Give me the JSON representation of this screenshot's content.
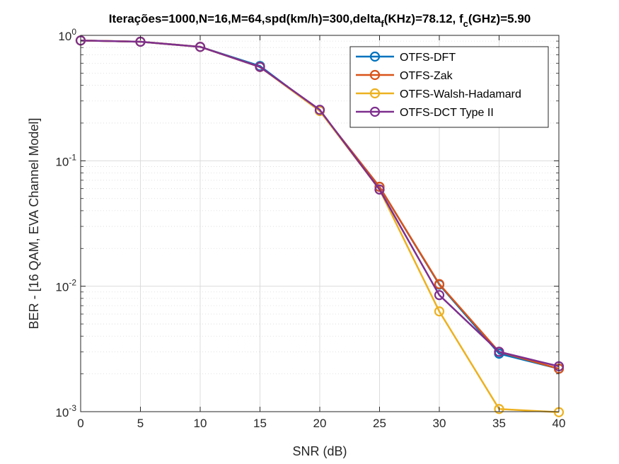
{
  "chart_data": {
    "type": "line",
    "title_parts": {
      "main": "Iterações=1000,N=16,M=64,spd(km/h)=300,delta",
      "sub1": "f",
      "mid": "(KHz)=78.12, f",
      "sub2": "c",
      "end": "(GHz)=5.90"
    },
    "xlabel": "SNR (dB)",
    "ylabel": "BER - [16 QAM, EVA Channel Model]",
    "xlim": [
      0,
      40
    ],
    "ylim": [
      0.001,
      1
    ],
    "yscale": "log",
    "grid": true,
    "legend_position": "top-right",
    "x_ticks": [
      0,
      5,
      10,
      15,
      20,
      25,
      30,
      35,
      40
    ],
    "x_tick_labels": [
      "0",
      "5",
      "10",
      "15",
      "20",
      "25",
      "30",
      "35",
      "40"
    ],
    "y_ticks": [
      1,
      0.1,
      0.01,
      0.001
    ],
    "y_tick_labels": [
      {
        "base": "10",
        "exp": "0"
      },
      {
        "base": "10",
        "exp": "-1"
      },
      {
        "base": "10",
        "exp": "-2"
      },
      {
        "base": "10",
        "exp": "-3"
      }
    ],
    "x": [
      0,
      5,
      10,
      15,
      20,
      25,
      30,
      35,
      40
    ],
    "series": [
      {
        "name": "OTFS-DFT",
        "color": "#0072BD",
        "values": [
          0.91,
          0.89,
          0.81,
          0.57,
          0.25,
          0.062,
          0.0103,
          0.0029,
          0.0022
        ]
      },
      {
        "name": "OTFS-Zak",
        "color": "#D95319",
        "values": [
          0.91,
          0.89,
          0.81,
          0.56,
          0.25,
          0.062,
          0.0104,
          0.003,
          0.0022
        ]
      },
      {
        "name": "OTFS-Walsh-Hadamard",
        "color": "#EDB120",
        "values": [
          0.91,
          0.89,
          0.81,
          0.56,
          0.25,
          0.059,
          0.0063,
          0.00105,
          0.00099
        ]
      },
      {
        "name": "OTFS-DCT Type II",
        "color": "#7E2F8E",
        "values": [
          0.91,
          0.89,
          0.81,
          0.56,
          0.255,
          0.059,
          0.0085,
          0.003,
          0.0023
        ]
      }
    ]
  }
}
